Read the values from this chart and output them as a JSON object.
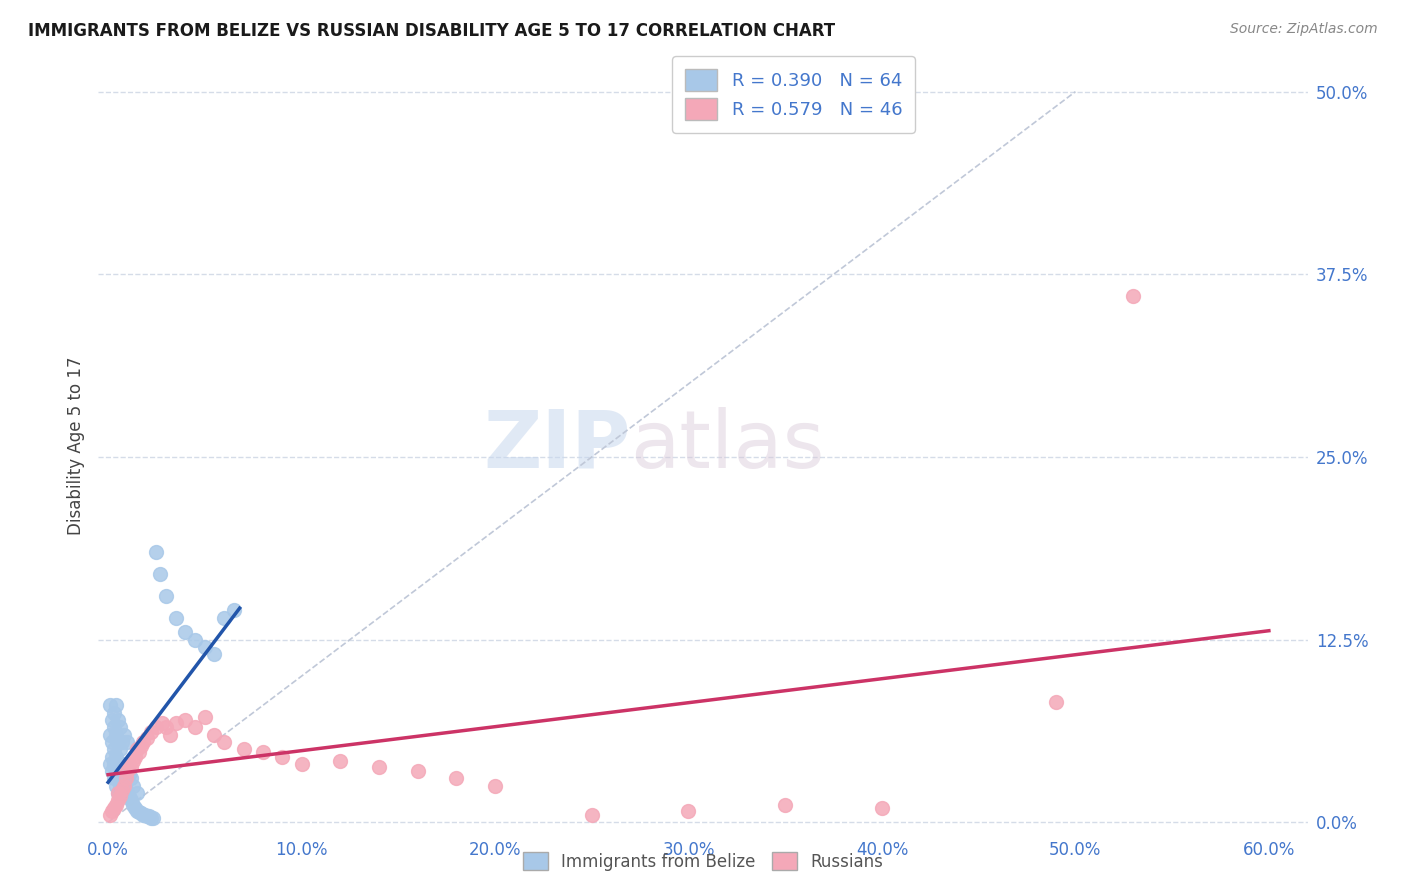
{
  "title": "IMMIGRANTS FROM BELIZE VS RUSSIAN DISABILITY AGE 5 TO 17 CORRELATION CHART",
  "source": "Source: ZipAtlas.com",
  "ylabel": "Disability Age 5 to 17",
  "xlabel_ticks": [
    "0.0%",
    "10.0%",
    "20.0%",
    "30.0%",
    "40.0%",
    "50.0%",
    "60.0%"
  ],
  "xlabel_vals": [
    0.0,
    0.1,
    0.2,
    0.3,
    0.4,
    0.5,
    0.6
  ],
  "ylabel_ticks": [
    "0.0%",
    "12.5%",
    "25.0%",
    "37.5%",
    "50.0%"
  ],
  "ylabel_vals": [
    0.0,
    0.125,
    0.25,
    0.375,
    0.5
  ],
  "xlim": [
    -0.005,
    0.62
  ],
  "ylim": [
    -0.005,
    0.52
  ],
  "belize_R": 0.39,
  "belize_N": 64,
  "russian_R": 0.579,
  "russian_N": 46,
  "belize_color": "#a8c8e8",
  "russian_color": "#f4a8b8",
  "belize_line_color": "#2255aa",
  "russian_line_color": "#cc3366",
  "diagonal_color": "#c0c8d8",
  "watermark_zip": "ZIP",
  "watermark_atlas": "atlas",
  "belize_x": [
    0.001,
    0.001,
    0.001,
    0.002,
    0.002,
    0.002,
    0.002,
    0.003,
    0.003,
    0.003,
    0.003,
    0.003,
    0.004,
    0.004,
    0.004,
    0.004,
    0.004,
    0.005,
    0.005,
    0.005,
    0.005,
    0.005,
    0.006,
    0.006,
    0.006,
    0.006,
    0.007,
    0.007,
    0.007,
    0.008,
    0.008,
    0.008,
    0.009,
    0.009,
    0.01,
    0.01,
    0.01,
    0.011,
    0.011,
    0.012,
    0.012,
    0.013,
    0.013,
    0.014,
    0.015,
    0.015,
    0.016,
    0.017,
    0.018,
    0.019,
    0.02,
    0.021,
    0.022,
    0.023,
    0.025,
    0.027,
    0.03,
    0.035,
    0.04,
    0.045,
    0.05,
    0.055,
    0.06,
    0.065
  ],
  "belize_y": [
    0.04,
    0.06,
    0.08,
    0.035,
    0.045,
    0.055,
    0.07,
    0.03,
    0.04,
    0.05,
    0.065,
    0.075,
    0.025,
    0.035,
    0.045,
    0.06,
    0.08,
    0.02,
    0.03,
    0.04,
    0.055,
    0.07,
    0.025,
    0.035,
    0.05,
    0.065,
    0.02,
    0.032,
    0.055,
    0.025,
    0.04,
    0.06,
    0.022,
    0.038,
    0.02,
    0.035,
    0.055,
    0.018,
    0.032,
    0.015,
    0.03,
    0.012,
    0.025,
    0.01,
    0.008,
    0.02,
    0.007,
    0.006,
    0.005,
    0.005,
    0.004,
    0.004,
    0.003,
    0.003,
    0.185,
    0.17,
    0.155,
    0.14,
    0.13,
    0.125,
    0.12,
    0.115,
    0.14,
    0.145
  ],
  "russian_x": [
    0.001,
    0.002,
    0.003,
    0.004,
    0.005,
    0.005,
    0.006,
    0.007,
    0.008,
    0.009,
    0.01,
    0.011,
    0.012,
    0.013,
    0.014,
    0.015,
    0.016,
    0.017,
    0.018,
    0.02,
    0.022,
    0.025,
    0.028,
    0.03,
    0.032,
    0.035,
    0.04,
    0.045,
    0.05,
    0.055,
    0.06,
    0.07,
    0.08,
    0.09,
    0.1,
    0.12,
    0.14,
    0.16,
    0.18,
    0.2,
    0.25,
    0.3,
    0.35,
    0.4,
    0.49,
    0.53
  ],
  "russian_y": [
    0.005,
    0.008,
    0.01,
    0.012,
    0.015,
    0.02,
    0.018,
    0.022,
    0.025,
    0.03,
    0.035,
    0.04,
    0.038,
    0.042,
    0.045,
    0.05,
    0.048,
    0.052,
    0.055,
    0.058,
    0.062,
    0.065,
    0.068,
    0.065,
    0.06,
    0.068,
    0.07,
    0.065,
    0.072,
    0.06,
    0.055,
    0.05,
    0.048,
    0.045,
    0.04,
    0.042,
    0.038,
    0.035,
    0.03,
    0.025,
    0.005,
    0.008,
    0.012,
    0.01,
    0.082,
    0.36
  ],
  "background_color": "#ffffff",
  "grid_color": "#d5dce8",
  "tick_color": "#4477cc"
}
